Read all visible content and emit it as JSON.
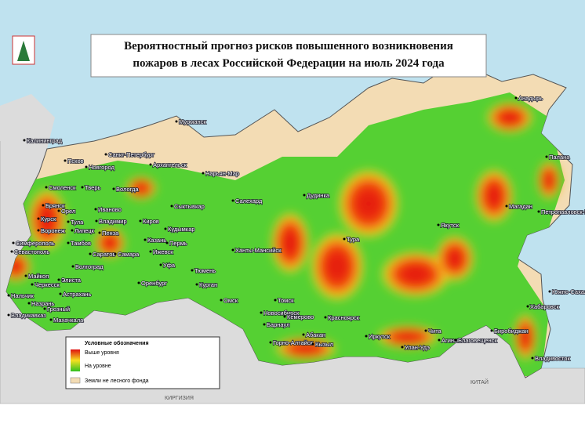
{
  "title": {
    "lines": [
      "Вероятностный прогноз рисков повышенного возникновения",
      "пожаров в лесах Российской Федерации на июль 2024 года"
    ]
  },
  "legend": {
    "heading": "Условные обозначения",
    "items": [
      {
        "label": "Выше уровня"
      },
      {
        "label": "На уровне"
      },
      {
        "label": "Земли не лесного фонда"
      }
    ]
  },
  "cities": [
    {
      "label": "Мурманск"
    },
    {
      "label": "Калининград"
    },
    {
      "label": "Псков"
    },
    {
      "label": "Санкт-Петербург"
    },
    {
      "label": "Новгород"
    },
    {
      "label": "Архангельск"
    },
    {
      "label": "Нарьян-Мар"
    },
    {
      "label": "Смоленск"
    },
    {
      "label": "Тверь"
    },
    {
      "label": "Вологда"
    },
    {
      "label": "Брянск"
    },
    {
      "label": "Орел"
    },
    {
      "label": "Иваново"
    },
    {
      "label": "Сыктывкар"
    },
    {
      "label": "Курск"
    },
    {
      "label": "Тула"
    },
    {
      "label": "Владимир"
    },
    {
      "label": "Киров"
    },
    {
      "label": "Воронеж"
    },
    {
      "label": "Липецк"
    },
    {
      "label": "Пенза"
    },
    {
      "label": "Кудымкар"
    },
    {
      "label": "Тамбов"
    },
    {
      "label": "Казань"
    },
    {
      "label": "Пермь"
    },
    {
      "label": "Саратов"
    },
    {
      "label": "Самара"
    },
    {
      "label": "Ижевск"
    },
    {
      "label": "Симферополь"
    },
    {
      "label": "Севастополь"
    },
    {
      "label": "Волгоград"
    },
    {
      "label": "Уфа"
    },
    {
      "label": "Майкоп"
    },
    {
      "label": "Черкесск"
    },
    {
      "label": "Элиста"
    },
    {
      "label": "Оренбург"
    },
    {
      "label": "Нальчик"
    },
    {
      "label": "Астрахань"
    },
    {
      "label": "Назрань"
    },
    {
      "label": "Грозный"
    },
    {
      "label": "Владикавказ"
    },
    {
      "label": "Махачкала"
    },
    {
      "label": "Дудинка"
    },
    {
      "label": "Салехард"
    },
    {
      "label": "Ханты-Мансийск"
    },
    {
      "label": "Тюмень"
    },
    {
      "label": "Курган"
    },
    {
      "label": "Омск"
    },
    {
      "label": "Новосибирск"
    },
    {
      "label": "Томск"
    },
    {
      "label": "Кемерово"
    },
    {
      "label": "Красноярск"
    },
    {
      "label": "Тура"
    },
    {
      "label": "Якутск"
    },
    {
      "label": "Магадан"
    },
    {
      "label": "Анадырь"
    },
    {
      "label": "Палана"
    },
    {
      "label": "Петропавловск-Камчатский"
    },
    {
      "label": "Барнаул"
    },
    {
      "label": "Абакан"
    },
    {
      "label": "Горно-Алтайск"
    },
    {
      "label": "Кызыл"
    },
    {
      "label": "Иркутск"
    },
    {
      "label": "Чита"
    },
    {
      "label": "Улан-Удэ"
    },
    {
      "label": "Агинское"
    },
    {
      "label": "Благовещенск"
    },
    {
      "label": "Биробиджан"
    },
    {
      "label": "Хабаровск"
    },
    {
      "label": "Южно-Сахалинск"
    },
    {
      "label": "Владивосток"
    }
  ],
  "countries": [
    {
      "label": "КИТАЙ"
    },
    {
      "label": "КИРГИЗИЯ"
    }
  ]
}
